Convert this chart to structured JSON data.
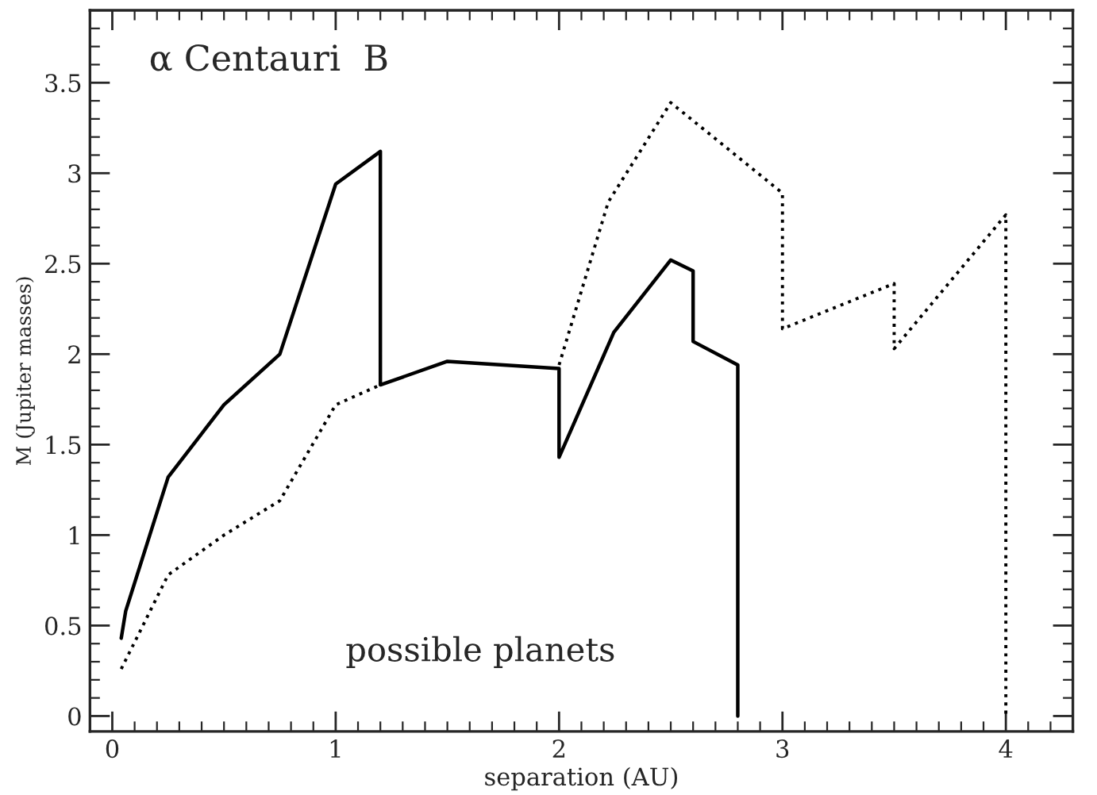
{
  "chart_data": {
    "type": "line",
    "title": "α Centauri  B",
    "xlabel": "separation (AU)",
    "ylabel": "M (Jupiter masses)",
    "annotations": [
      "possible planets"
    ],
    "series": [
      {
        "color": "#000000",
        "line_style": "solid",
        "x": [
          0.04,
          0.06,
          0.25,
          0.5,
          0.75,
          1.0,
          1.2,
          1.2,
          1.5,
          2.0,
          2.0,
          2.245,
          2.5,
          2.6,
          2.6,
          2.8,
          2.8
        ],
        "values": [
          0.43,
          0.58,
          1.32,
          1.72,
          2.0,
          2.94,
          3.12,
          1.83,
          1.96,
          1.92,
          1.43,
          2.12,
          2.52,
          2.46,
          2.07,
          1.94,
          0
        ]
      },
      {
        "color": "#000000",
        "line_style": "dotted",
        "x": [
          0.04,
          0.25,
          0.5,
          0.75,
          1.0,
          1.2,
          1.5,
          2.0,
          2.22,
          2.5,
          3.0,
          3.0,
          3.5,
          3.5,
          4.0,
          4.0
        ],
        "values": [
          0.26,
          0.78,
          1.0,
          1.19,
          1.72,
          1.83,
          null,
          1.94,
          2.84,
          3.39,
          2.89,
          2.14,
          2.39,
          2.03,
          2.77,
          0
        ]
      }
    ],
    "xlim": [
      -0.1,
      4.3
    ],
    "xticks": [
      0,
      1,
      2,
      3,
      4
    ],
    "ylim": [
      -0.085,
      3.9
    ],
    "yticks": [
      0,
      0.5,
      1,
      1.5,
      2,
      2.5,
      3,
      3.5
    ],
    "grid": false
  }
}
